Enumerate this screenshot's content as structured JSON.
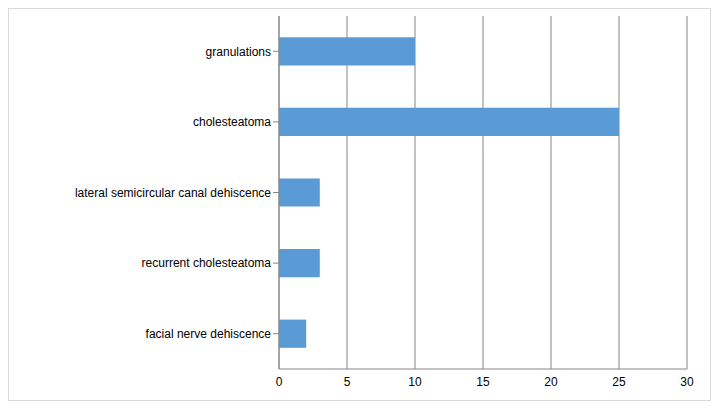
{
  "chart_data": {
    "type": "bar",
    "orientation": "horizontal",
    "categories": [
      "granulations",
      "cholesteatoma",
      "lateral semicircular canal dehiscence",
      "recurrent cholesteatoma",
      "facial nerve dehiscence"
    ],
    "values": [
      10,
      25,
      3,
      3,
      2
    ],
    "color": "#5b9bd5",
    "xlim": [
      0,
      30
    ],
    "xticks": [
      0,
      5,
      10,
      15,
      20,
      25,
      30
    ],
    "grid": true
  }
}
